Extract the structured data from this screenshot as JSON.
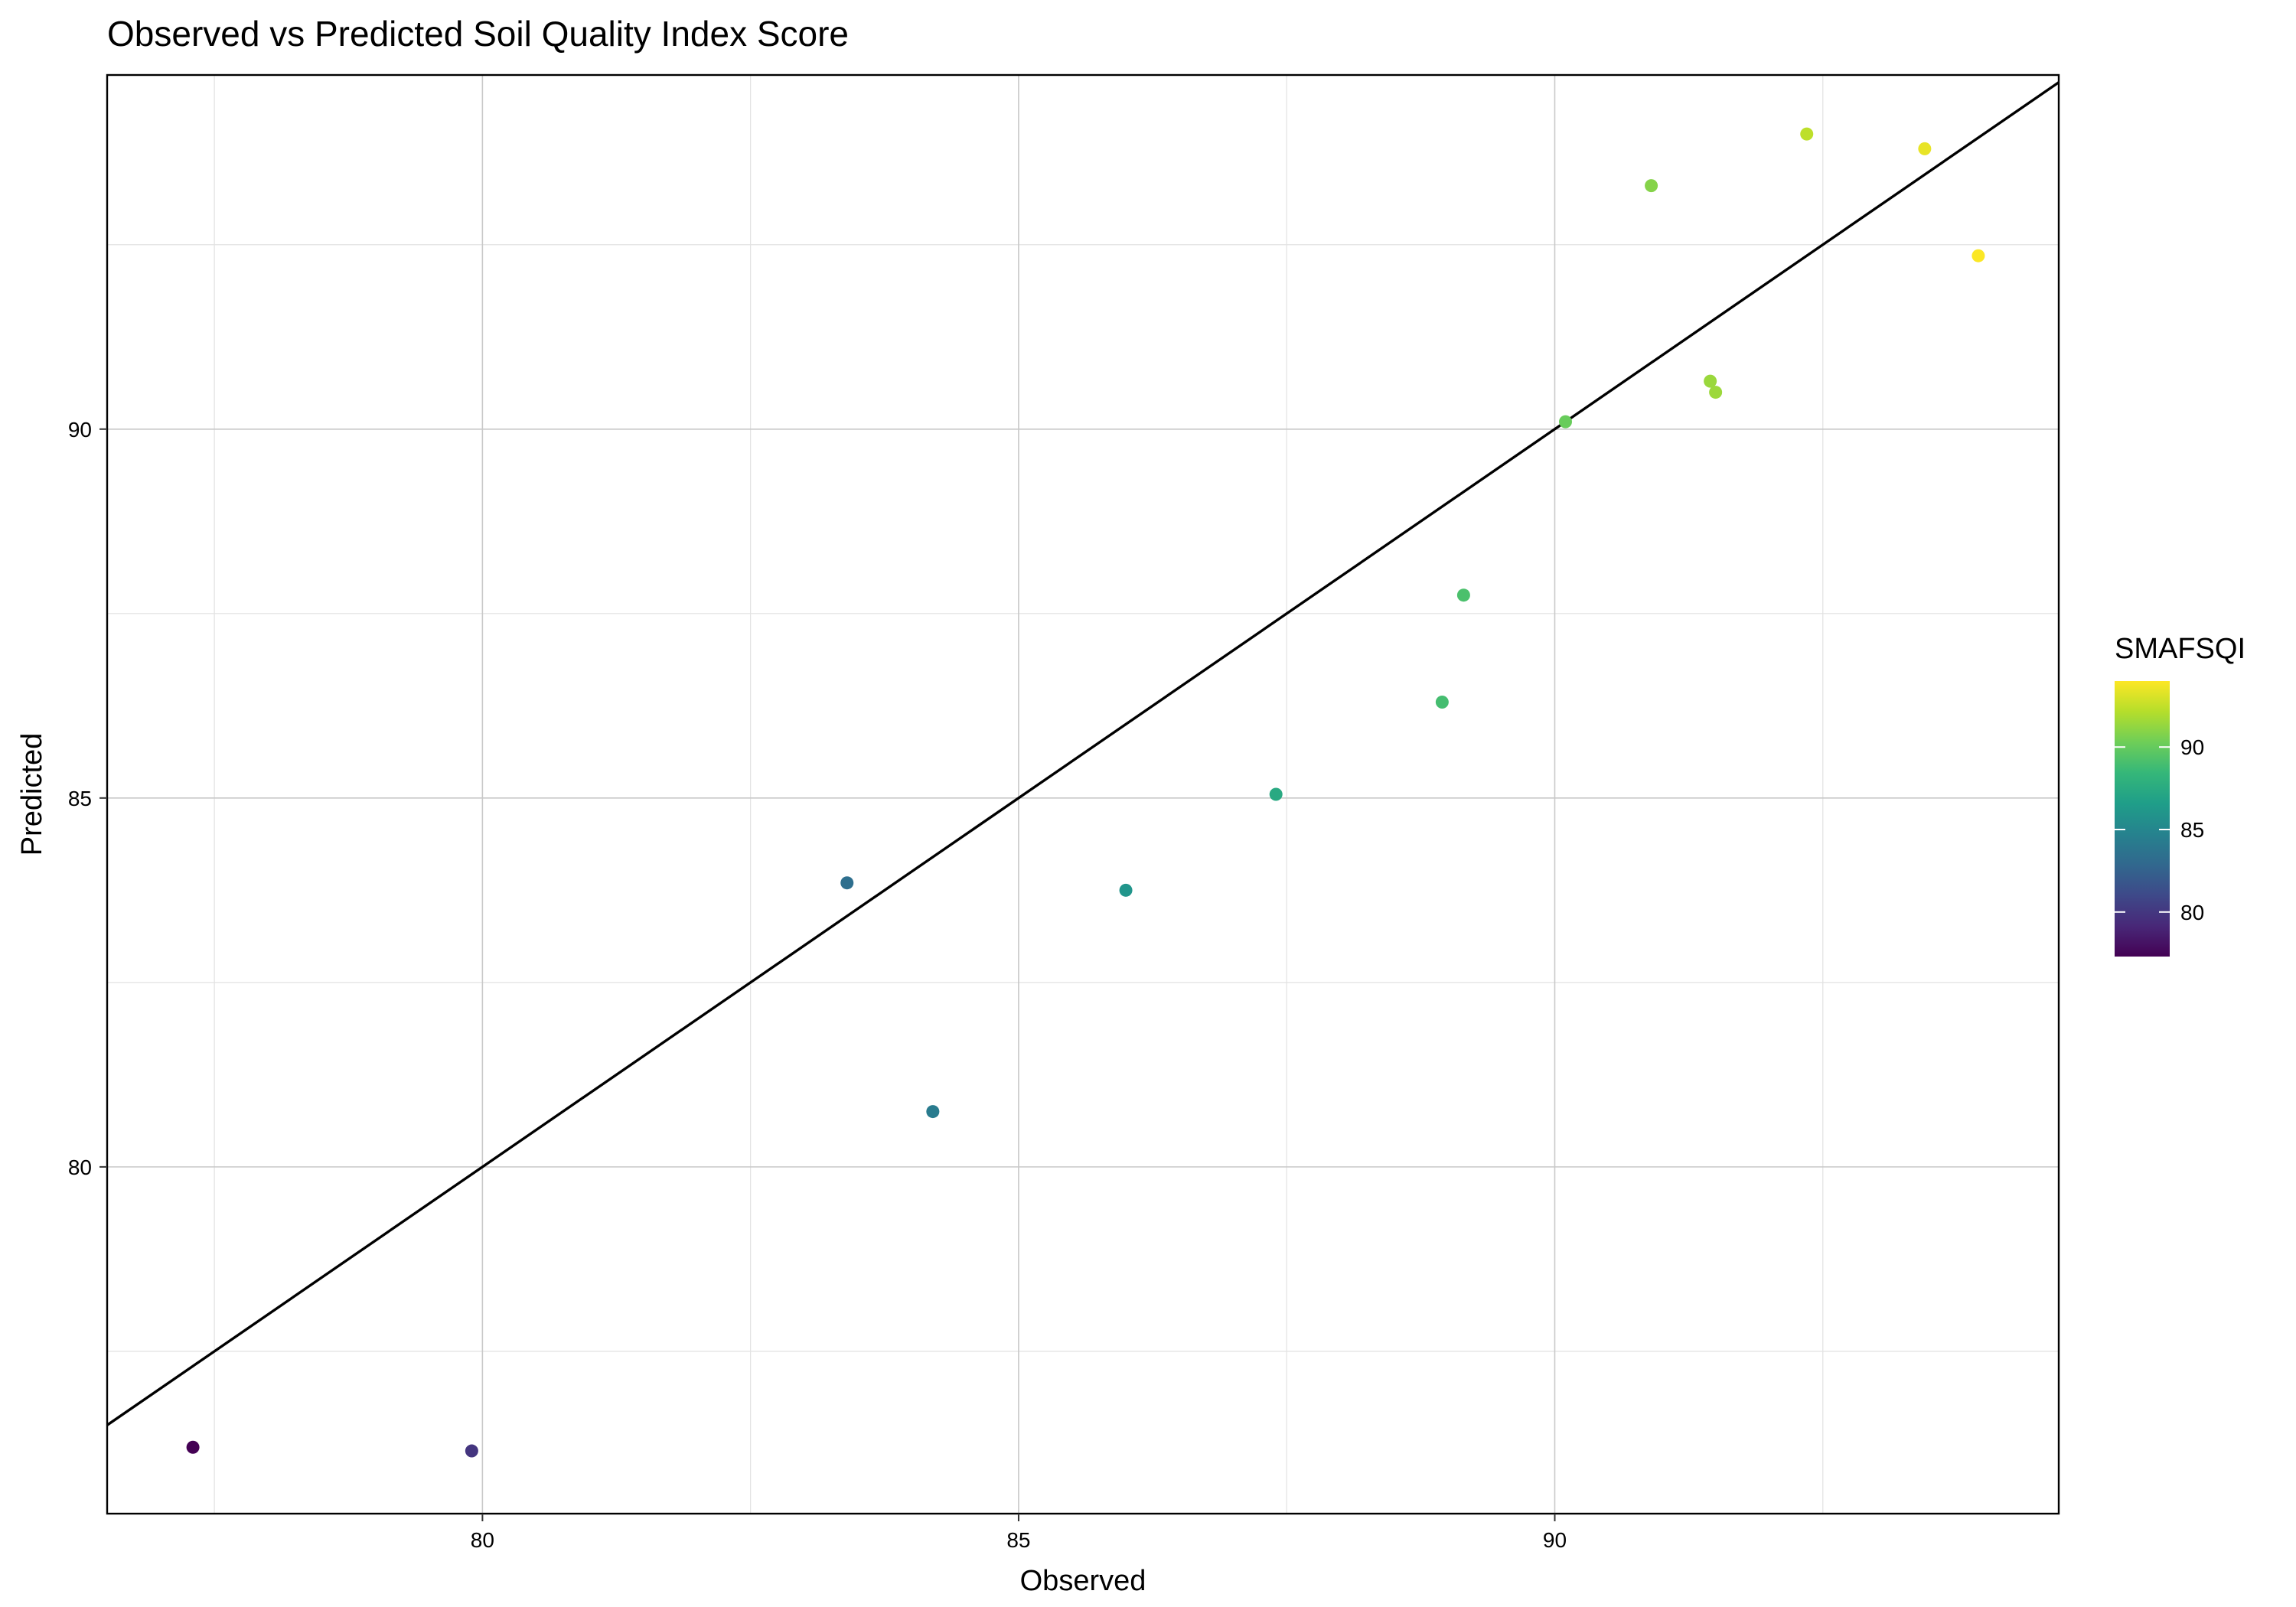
{
  "chart_data": {
    "type": "scatter",
    "title": "Observed vs Predicted Soil Quality Index Score",
    "xlabel": "Observed",
    "ylabel": "Predicted",
    "xlim": [
      76.5,
      94.7
    ],
    "ylim": [
      75.3,
      94.8
    ],
    "x_major_ticks": [
      80,
      85,
      90
    ],
    "x_minor_ticks": [
      77.5,
      82.5,
      87.5,
      92.5
    ],
    "y_major_ticks": [
      80,
      85,
      90
    ],
    "y_minor_ticks": [
      77.5,
      82.5,
      87.5,
      92.5
    ],
    "grid": true,
    "reference_line": {
      "type": "identity",
      "slope": 1,
      "intercept": 0,
      "color": "#000000"
    },
    "color_scale": {
      "title": "SMAFSQI",
      "palette": "viridis",
      "range": [
        77.3,
        94.0
      ],
      "breaks": [
        80,
        85,
        90
      ],
      "stops": [
        "#440154",
        "#482878",
        "#3e4989",
        "#31688e",
        "#26828e",
        "#1f9e89",
        "#35b779",
        "#6ece58",
        "#b5de2b",
        "#fde725"
      ],
      "legend_position": "right"
    },
    "points": [
      {
        "x": 77.3,
        "y": 76.2
      },
      {
        "x": 79.9,
        "y": 76.15
      },
      {
        "x": 83.4,
        "y": 83.85
      },
      {
        "x": 84.2,
        "y": 80.75
      },
      {
        "x": 86.0,
        "y": 83.75
      },
      {
        "x": 87.4,
        "y": 85.05
      },
      {
        "x": 88.95,
        "y": 86.3
      },
      {
        "x": 89.15,
        "y": 87.75
      },
      {
        "x": 90.1,
        "y": 90.1
      },
      {
        "x": 90.9,
        "y": 93.3
      },
      {
        "x": 91.45,
        "y": 90.65
      },
      {
        "x": 91.5,
        "y": 90.5
      },
      {
        "x": 92.35,
        "y": 94.0
      },
      {
        "x": 93.45,
        "y": 93.8
      },
      {
        "x": 93.95,
        "y": 92.35
      }
    ]
  }
}
